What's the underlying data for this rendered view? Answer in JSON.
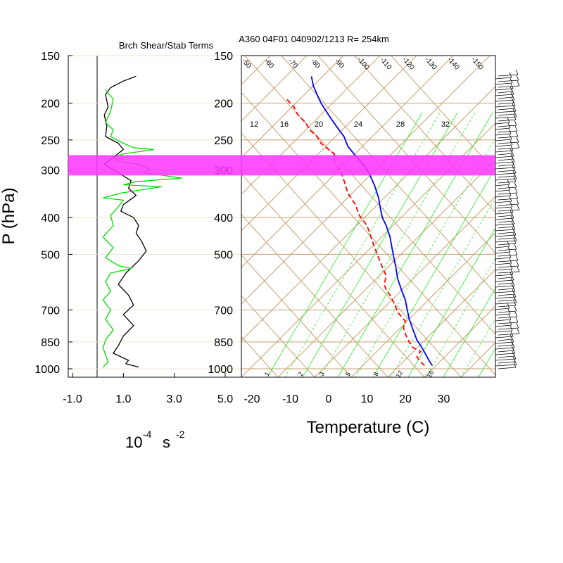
{
  "colors": {
    "shear_line": "#000000",
    "stab_line": "#00dd00",
    "temperature_line": "#0000ff",
    "dewpoint_line": "#ff0000",
    "skewt_grid": "#c8a070",
    "mixing_ratio": "#22ee22",
    "highlight_band": "#ff33ff"
  },
  "chart_data": [
    {
      "type": "line",
      "title": "Brch Shear/Stab Terms",
      "xlabel_base": "10",
      "xlabel_exp": "-4",
      "xlabel_unit": "s",
      "xlabel_unit_exp": "-2",
      "ylabel": "P (hPa)",
      "y_scale": "log",
      "ylim": [
        1000,
        150
      ],
      "xlim": [
        -1.0,
        5.0
      ],
      "x_ticks": [
        "-1.0",
        "1.0",
        "3.0",
        "5.0"
      ],
      "x_tick_values": [
        -1.0,
        1.0,
        3.0,
        5.0
      ],
      "y_ticks": [
        "150",
        "200",
        "250",
        "300",
        "400",
        "500",
        "700",
        "850",
        "1000"
      ],
      "y_tick_values": [
        150,
        200,
        250,
        300,
        400,
        500,
        700,
        850,
        1000
      ],
      "highlight_band_hPa": [
        280,
        310
      ],
      "series": [
        {
          "key": "shear",
          "points": [
            [
              1.5,
              170
            ],
            [
              1.0,
              175
            ],
            [
              0.5,
              182
            ],
            [
              0.3,
              190
            ],
            [
              0.4,
              205
            ],
            [
              0.25,
              215
            ],
            [
              0.35,
              230
            ],
            [
              0.3,
              245
            ],
            [
              0.8,
              255
            ],
            [
              1.0,
              265
            ],
            [
              0.6,
              278
            ],
            [
              0.25,
              290
            ],
            [
              0.8,
              305
            ],
            [
              1.3,
              320
            ],
            [
              1.2,
              335
            ],
            [
              1.5,
              350
            ],
            [
              1.0,
              370
            ],
            [
              0.9,
              385
            ],
            [
              1.4,
              400
            ],
            [
              1.6,
              420
            ],
            [
              1.5,
              440
            ],
            [
              1.7,
              460
            ],
            [
              1.9,
              490
            ],
            [
              1.6,
              520
            ],
            [
              1.1,
              560
            ],
            [
              0.8,
              600
            ],
            [
              1.2,
              640
            ],
            [
              1.4,
              680
            ],
            [
              1.0,
              720
            ],
            [
              1.4,
              770
            ],
            [
              1.0,
              820
            ],
            [
              0.8,
              870
            ],
            [
              0.6,
              910
            ],
            [
              1.2,
              950
            ],
            [
              1.1,
              970
            ],
            [
              1.6,
              990
            ]
          ]
        },
        {
          "key": "stab",
          "points": [
            [
              0.3,
              185
            ],
            [
              0.6,
              195
            ],
            [
              0.5,
              210
            ],
            [
              0.3,
              225
            ],
            [
              0.6,
              235
            ],
            [
              0.5,
              245
            ],
            [
              1.0,
              255
            ],
            [
              1.4,
              262
            ],
            [
              2.2,
              265
            ],
            [
              1.0,
              272
            ],
            [
              0.6,
              278
            ],
            [
              0.9,
              285
            ],
            [
              1.6,
              290
            ],
            [
              2.0,
              298
            ],
            [
              1.8,
              305
            ],
            [
              3.3,
              315
            ],
            [
              1.5,
              322
            ],
            [
              1.0,
              328
            ],
            [
              2.5,
              332
            ],
            [
              0.9,
              345
            ],
            [
              0.2,
              355
            ],
            [
              1.0,
              360
            ],
            [
              0.8,
              375
            ],
            [
              0.5,
              395
            ],
            [
              0.6,
              420
            ],
            [
              0.2,
              450
            ],
            [
              0.6,
              480
            ],
            [
              0.3,
              510
            ],
            [
              0.8,
              535
            ],
            [
              1.3,
              545
            ],
            [
              0.5,
              560
            ],
            [
              0.3,
              590
            ],
            [
              0.5,
              625
            ],
            [
              0.2,
              660
            ],
            [
              0.5,
              700
            ],
            [
              0.3,
              740
            ],
            [
              0.6,
              790
            ],
            [
              0.3,
              840
            ],
            [
              0.2,
              880
            ],
            [
              0.3,
              920
            ],
            [
              0.4,
              960
            ],
            [
              0.2,
              990
            ]
          ]
        }
      ]
    },
    {
      "type": "line",
      "title": "A360 04F01 040902/1213 R= 254km",
      "xlabel": "Temperature (C)",
      "y_scale": "log",
      "ylim": [
        1000,
        150
      ],
      "xlim": [
        -25,
        43
      ],
      "x_ticks": [
        "-20",
        "-10",
        "0",
        "10",
        "20",
        "30"
      ],
      "x_tick_values": [
        -20,
        -10,
        0,
        10,
        20,
        30
      ],
      "y_ticks": [
        "150",
        "200",
        "250",
        "300",
        "400",
        "500",
        "700",
        "850",
        "1000"
      ],
      "y_tick_values": [
        150,
        200,
        250,
        300,
        400,
        500,
        700,
        850,
        1000
      ],
      "mixing_ratio_labels_top": [
        "12",
        "16",
        "20",
        "24",
        "28",
        "32"
      ],
      "mixing_ratio_labels_bottom": [
        "1",
        "2",
        "3",
        "5",
        "8",
        "12",
        "16"
      ],
      "isotherm_labels": [
        "-50",
        "-60",
        "-70",
        "-80",
        "-90",
        "-100",
        "-110",
        "-120",
        "-130",
        "-140",
        "-150"
      ],
      "series": [
        {
          "key": "temperature",
          "points": [
            [
              27,
              980
            ],
            [
              26,
              945
            ],
            [
              25,
              905
            ],
            [
              24,
              870
            ],
            [
              23,
              840
            ],
            [
              22,
              790
            ],
            [
              21,
              740
            ],
            [
              20.5,
              700
            ],
            [
              20,
              660
            ],
            [
              19,
              620
            ],
            [
              18,
              580
            ],
            [
              17.5,
              540
            ],
            [
              17,
              510
            ],
            [
              16.5,
              480
            ],
            [
              16,
              450
            ],
            [
              15,
              420
            ],
            [
              14,
              400
            ],
            [
              13.5,
              380
            ],
            [
              13,
              355
            ],
            [
              12,
              330
            ],
            [
              10.5,
              305
            ],
            [
              9,
              290
            ],
            [
              7,
              275
            ],
            [
              5,
              260
            ],
            [
              4,
              245
            ],
            [
              2,
              230
            ],
            [
              0,
              215
            ],
            [
              -2,
              200
            ],
            [
              -3,
              190
            ],
            [
              -4,
              180
            ],
            [
              -4.5,
              170
            ]
          ]
        },
        {
          "key": "dewpoint",
          "points": [
            [
              25,
              980
            ],
            [
              24,
              960
            ],
            [
              23,
              930
            ],
            [
              24,
              900
            ],
            [
              22,
              880
            ],
            [
              21,
              850
            ],
            [
              20,
              810
            ],
            [
              19.5,
              780
            ],
            [
              20,
              750
            ],
            [
              18,
              710
            ],
            [
              17,
              670
            ],
            [
              16,
              640
            ],
            [
              15,
              620
            ],
            [
              14.5,
              600
            ],
            [
              15,
              570
            ],
            [
              14,
              540
            ],
            [
              13,
              510
            ],
            [
              12,
              480
            ],
            [
              11,
              450
            ],
            [
              10,
              420
            ],
            [
              8,
              395
            ],
            [
              7,
              370
            ],
            [
              5,
              345
            ],
            [
              4,
              320
            ],
            [
              3,
              300
            ],
            [
              1.5,
              285
            ],
            [
              1.5,
              272
            ],
            [
              0,
              265
            ],
            [
              -2,
              255
            ],
            [
              -3,
              245
            ],
            [
              -5,
              235
            ],
            [
              -6,
              225
            ],
            [
              -8,
              215
            ],
            [
              -9,
              205
            ],
            [
              -11,
              195
            ]
          ]
        }
      ]
    }
  ]
}
